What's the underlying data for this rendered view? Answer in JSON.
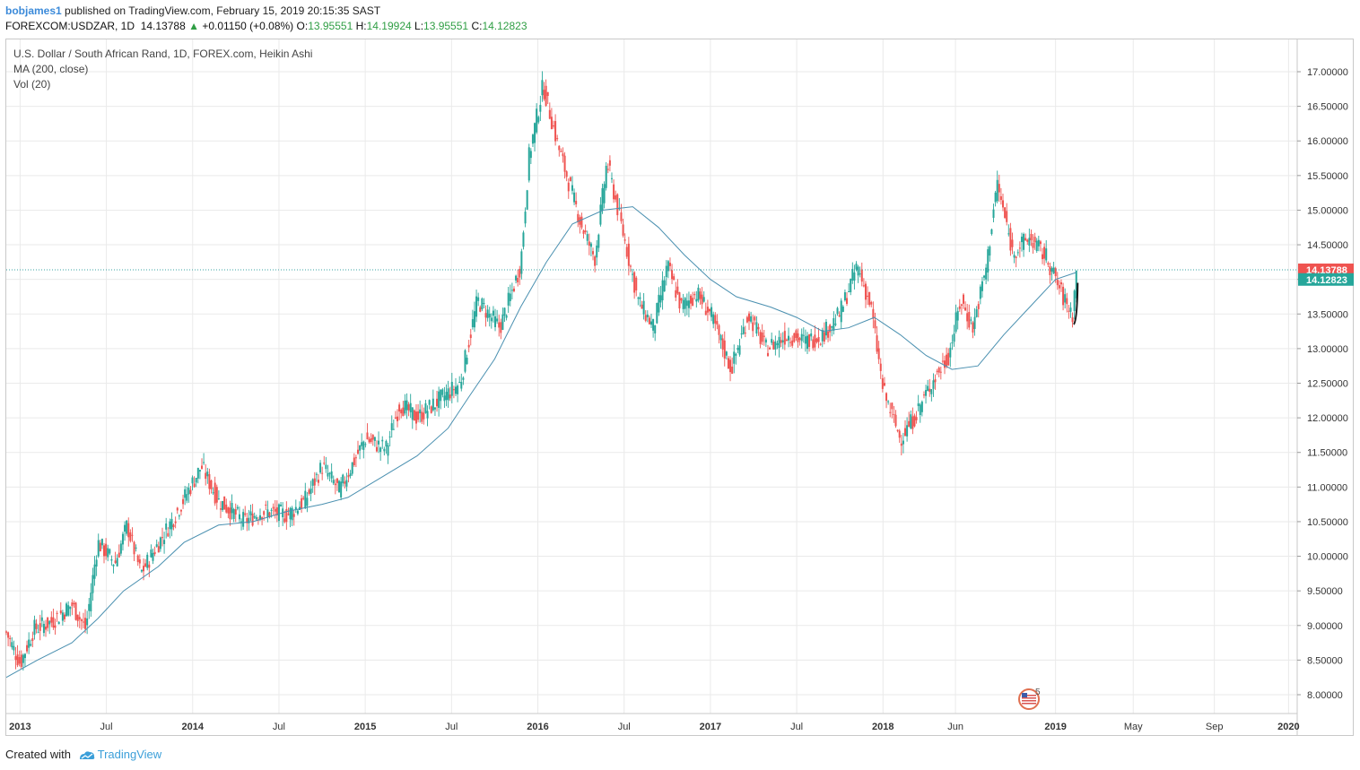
{
  "header": {
    "user": "bobjames1",
    "published": "published on TradingView.com, February 15, 2019 20:15:35 SAST",
    "symbol": "FOREXCOM:USDZAR, 1D",
    "last": "14.13788",
    "change_arrow": "▲",
    "change": "+0.01150 (+0.08%)",
    "o_label": "O:",
    "o_value": "13.95551",
    "h_label": "H:",
    "h_value": "14.19924",
    "l_label": "L:",
    "l_value": "13.95551",
    "c_label": "C:",
    "c_value": "14.12823"
  },
  "legend": {
    "title": "U.S. Dollar / South African Rand, 1D, FOREX.com, Heikin Ashi",
    "ma": "MA (200, close)",
    "vol": "Vol (20)"
  },
  "footer": {
    "created_with": "Created with",
    "brand": "TradingView"
  },
  "colors": {
    "up": "#26a69a",
    "down": "#ef5350",
    "ma": "#4a90b0",
    "grid": "#eaeaea",
    "last_label": "#ef5350",
    "close_label": "#26a69a"
  },
  "chart_data": {
    "type": "candlestick",
    "title": "U.S. Dollar / South African Rand, 1D, FOREX.com, Heikin Ashi",
    "ylim": [
      7.75,
      17.3
    ],
    "xlim": [
      2012.92,
      2020.4
    ],
    "y_ticks": [
      "17.00000",
      "16.50000",
      "16.00000",
      "15.50000",
      "15.00000",
      "14.50000",
      "14.00000",
      "13.50000",
      "13.00000",
      "12.50000",
      "12.00000",
      "11.50000",
      "11.00000",
      "10.50000",
      "10.00000",
      "9.50000",
      "9.00000",
      "8.50000",
      "8.00000"
    ],
    "x_ticks": [
      {
        "label": "2013",
        "t": 2013.0,
        "bold": true
      },
      {
        "label": "Jul",
        "t": 2013.5,
        "bold": false
      },
      {
        "label": "2014",
        "t": 2014.0,
        "bold": true
      },
      {
        "label": "Jul",
        "t": 2014.5,
        "bold": false
      },
      {
        "label": "2015",
        "t": 2015.0,
        "bold": true
      },
      {
        "label": "Jul",
        "t": 2015.5,
        "bold": false
      },
      {
        "label": "2016",
        "t": 2016.0,
        "bold": true
      },
      {
        "label": "Jul",
        "t": 2016.5,
        "bold": false
      },
      {
        "label": "2017",
        "t": 2017.0,
        "bold": true
      },
      {
        "label": "Jul",
        "t": 2017.5,
        "bold": false
      },
      {
        "label": "2018",
        "t": 2018.0,
        "bold": true
      },
      {
        "label": "Jun",
        "t": 2018.42,
        "bold": false
      },
      {
        "label": "2019",
        "t": 2019.0,
        "bold": true
      },
      {
        "label": "May",
        "t": 2019.45,
        "bold": false
      },
      {
        "label": "Sep",
        "t": 2019.92,
        "bold": false
      },
      {
        "label": "2020",
        "t": 2020.35,
        "bold": true
      }
    ],
    "price_path": [
      [
        2012.92,
        8.9
      ],
      [
        2013.0,
        8.45
      ],
      [
        2013.08,
        8.95
      ],
      [
        2013.18,
        9.05
      ],
      [
        2013.3,
        9.3
      ],
      [
        2013.38,
        8.95
      ],
      [
        2013.45,
        10.2
      ],
      [
        2013.55,
        9.9
      ],
      [
        2013.62,
        10.45
      ],
      [
        2013.7,
        9.75
      ],
      [
        2013.78,
        10.1
      ],
      [
        2013.9,
        10.6
      ],
      [
        2014.05,
        11.3
      ],
      [
        2014.15,
        10.8
      ],
      [
        2014.3,
        10.5
      ],
      [
        2014.4,
        10.65
      ],
      [
        2014.55,
        10.6
      ],
      [
        2014.65,
        10.8
      ],
      [
        2014.75,
        11.3
      ],
      [
        2014.85,
        10.95
      ],
      [
        2015.0,
        11.7
      ],
      [
        2015.12,
        11.55
      ],
      [
        2015.2,
        12.2
      ],
      [
        2015.3,
        12.0
      ],
      [
        2015.45,
        12.3
      ],
      [
        2015.55,
        12.5
      ],
      [
        2015.65,
        13.7
      ],
      [
        2015.78,
        13.3
      ],
      [
        2015.9,
        14.2
      ],
      [
        2015.95,
        15.8
      ],
      [
        2016.03,
        16.8
      ],
      [
        2016.12,
        15.9
      ],
      [
        2016.25,
        14.8
      ],
      [
        2016.33,
        14.3
      ],
      [
        2016.4,
        15.7
      ],
      [
        2016.5,
        14.6
      ],
      [
        2016.58,
        13.7
      ],
      [
        2016.67,
        13.3
      ],
      [
        2016.75,
        14.2
      ],
      [
        2016.83,
        13.6
      ],
      [
        2016.92,
        13.8
      ],
      [
        2017.0,
        13.5
      ],
      [
        2017.12,
        12.7
      ],
      [
        2017.22,
        13.5
      ],
      [
        2017.32,
        13.0
      ],
      [
        2017.45,
        13.2
      ],
      [
        2017.55,
        13.1
      ],
      [
        2017.65,
        13.2
      ],
      [
        2017.75,
        13.5
      ],
      [
        2017.85,
        14.2
      ],
      [
        2017.93,
        13.6
      ],
      [
        2018.0,
        12.4
      ],
      [
        2018.1,
        11.7
      ],
      [
        2018.18,
        12.0
      ],
      [
        2018.28,
        12.5
      ],
      [
        2018.38,
        12.9
      ],
      [
        2018.45,
        13.7
      ],
      [
        2018.52,
        13.3
      ],
      [
        2018.6,
        14.2
      ],
      [
        2018.66,
        15.4
      ],
      [
        2018.75,
        14.4
      ],
      [
        2018.85,
        14.6
      ],
      [
        2018.95,
        14.3
      ],
      [
        2019.05,
        13.7
      ],
      [
        2019.1,
        13.5
      ],
      [
        2019.12,
        14.13
      ]
    ],
    "ma_path": [
      [
        2012.92,
        8.25
      ],
      [
        2013.1,
        8.5
      ],
      [
        2013.3,
        8.75
      ],
      [
        2013.45,
        9.1
      ],
      [
        2013.6,
        9.5
      ],
      [
        2013.8,
        9.85
      ],
      [
        2013.95,
        10.2
      ],
      [
        2014.15,
        10.45
      ],
      [
        2014.35,
        10.5
      ],
      [
        2014.55,
        10.65
      ],
      [
        2014.75,
        10.75
      ],
      [
        2014.9,
        10.85
      ],
      [
        2015.1,
        11.15
      ],
      [
        2015.3,
        11.45
      ],
      [
        2015.48,
        11.85
      ],
      [
        2015.6,
        12.3
      ],
      [
        2015.75,
        12.85
      ],
      [
        2015.9,
        13.6
      ],
      [
        2016.05,
        14.25
      ],
      [
        2016.2,
        14.8
      ],
      [
        2016.38,
        15.0
      ],
      [
        2016.55,
        15.05
      ],
      [
        2016.7,
        14.75
      ],
      [
        2016.85,
        14.35
      ],
      [
        2017.0,
        14.0
      ],
      [
        2017.15,
        13.75
      ],
      [
        2017.35,
        13.6
      ],
      [
        2017.5,
        13.45
      ],
      [
        2017.65,
        13.25
      ],
      [
        2017.8,
        13.3
      ],
      [
        2017.95,
        13.45
      ],
      [
        2018.1,
        13.2
      ],
      [
        2018.25,
        12.9
      ],
      [
        2018.4,
        12.7
      ],
      [
        2018.55,
        12.75
      ],
      [
        2018.7,
        13.2
      ],
      [
        2018.85,
        13.6
      ],
      [
        2019.0,
        14.0
      ],
      [
        2019.12,
        14.1
      ]
    ],
    "last_price": 14.13788,
    "close_price": 14.12823,
    "last_label": "14.13788",
    "close_label": "14.12823",
    "event_marker": "5"
  }
}
